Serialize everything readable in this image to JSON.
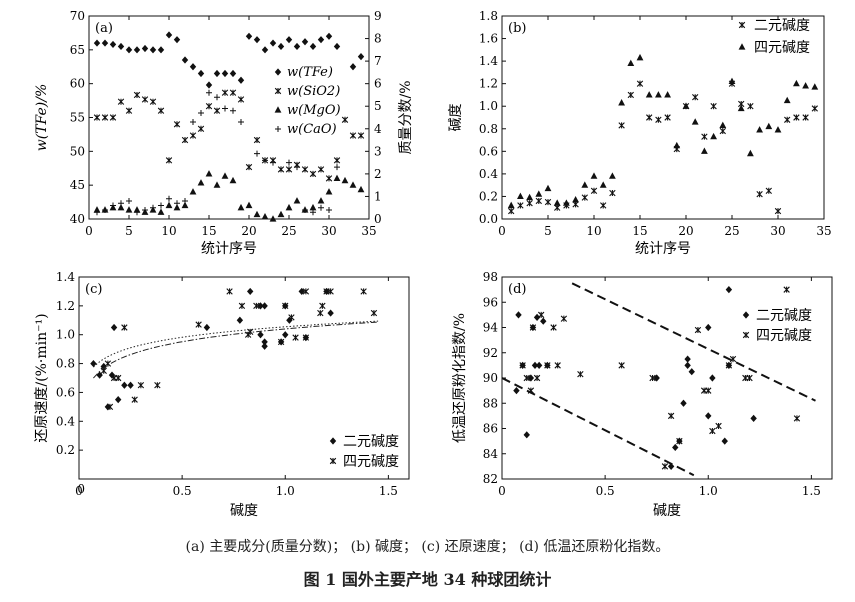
{
  "figure": {
    "subcaption": "(a) 主要成分(质量分数)； (b) 碱度； (c) 还原速度； (d) 低温还原粉化指数。",
    "title": "图 1  国外主要产地 34 种球团统计"
  },
  "chart_data": [
    {
      "panel": "a",
      "type": "scatter",
      "panel_label": "(a)",
      "xlabel": "统计序号",
      "ylabel_left": "w(TFe)/%",
      "ylabel_right": "质量分数/%",
      "xlim": [
        0,
        35
      ],
      "xticks": [
        0,
        5,
        10,
        15,
        20,
        25,
        30,
        35
      ],
      "ylim_left": [
        40,
        70
      ],
      "yticks_left": [
        40,
        45,
        50,
        55,
        60,
        65,
        70
      ],
      "ylim_right": [
        0,
        9
      ],
      "yticks_right": [
        0,
        1,
        2,
        3,
        4,
        5,
        6,
        7,
        8,
        9
      ],
      "legend_position": "right-middle",
      "series": [
        {
          "name": "w(TFe)",
          "marker": "diamond",
          "axis": "left",
          "x": [
            1,
            2,
            3,
            4,
            5,
            6,
            7,
            8,
            9,
            10,
            11,
            12,
            13,
            14,
            15,
            16,
            17,
            18,
            19,
            20,
            21,
            22,
            23,
            24,
            25,
            26,
            27,
            28,
            29,
            30,
            31,
            32,
            33,
            34
          ],
          "y": [
            66,
            66,
            65.8,
            65.5,
            65,
            65,
            65.2,
            65,
            65,
            67.2,
            66.5,
            63.5,
            62.5,
            61.5,
            59.8,
            61.5,
            61.5,
            61.5,
            60.5,
            67,
            66.5,
            65,
            66,
            65.5,
            66.5,
            65.5,
            66.2,
            65.5,
            66.5,
            67,
            65.5,
            null,
            62.5,
            64
          ]
        },
        {
          "name": "w(SiO2)",
          "marker": "x",
          "axis": "right",
          "x": [
            1,
            2,
            3,
            4,
            5,
            6,
            7,
            8,
            9,
            10,
            11,
            12,
            13,
            14,
            15,
            16,
            17,
            18,
            19,
            20,
            21,
            22,
            23,
            24,
            25,
            26,
            27,
            28,
            29,
            30,
            31,
            32,
            33,
            34
          ],
          "y": [
            4.5,
            4.5,
            4.5,
            5.2,
            4.8,
            5.5,
            5.3,
            5.2,
            4.8,
            2.6,
            4.2,
            3.5,
            3.7,
            4.0,
            5.0,
            4.8,
            5.6,
            5.6,
            5.3,
            2.3,
            3.5,
            2.6,
            2.6,
            2.2,
            2.2,
            2.4,
            2.2,
            2.0,
            2.2,
            1.8,
            2.6,
            4.4,
            3.7,
            3.7
          ]
        },
        {
          "name": "w(MgO)",
          "marker": "triangle",
          "axis": "right",
          "x": [
            1,
            2,
            3,
            4,
            5,
            6,
            7,
            8,
            9,
            10,
            11,
            12,
            13,
            14,
            15,
            16,
            17,
            18,
            19,
            20,
            21,
            22,
            23,
            24,
            25,
            26,
            27,
            28,
            29,
            30,
            31,
            32,
            33,
            34
          ],
          "y": [
            0.4,
            0.4,
            0.5,
            0.5,
            0.4,
            0.4,
            0.3,
            0.4,
            0.3,
            0.6,
            0.5,
            0.6,
            1.2,
            1.6,
            2.0,
            1.5,
            1.9,
            1.7,
            0.5,
            0.6,
            0.2,
            0.1,
            0.0,
            0.2,
            0.5,
            0.8,
            0.4,
            0.5,
            0.8,
            1.2,
            1.8,
            1.7,
            1.5,
            1.3
          ]
        },
        {
          "name": "w(CaO)",
          "marker": "plus",
          "axis": "right",
          "x": [
            1,
            2,
            3,
            4,
            5,
            6,
            7,
            8,
            9,
            10,
            11,
            12,
            13,
            14,
            15,
            16,
            17,
            18,
            19,
            20,
            21,
            22,
            23,
            24,
            25,
            26,
            27,
            28,
            29,
            30,
            31,
            32,
            33,
            34
          ],
          "y": [
            0.3,
            0.4,
            0.6,
            0.7,
            0.8,
            0.3,
            0.4,
            0.5,
            0.6,
            0.9,
            0.7,
            0.8,
            4.3,
            4.7,
            5.6,
            5.4,
            4.9,
            4.8,
            4.3,
            null,
            2.9,
            2.6,
            2.5,
            null,
            2.5,
            2.3,
            0.4,
            0.3,
            0.5,
            0.4,
            2.3,
            null,
            null,
            null
          ]
        }
      ]
    },
    {
      "panel": "b",
      "type": "scatter",
      "panel_label": "(b)",
      "xlabel": "统计序号",
      "ylabel": "碱度",
      "xlim": [
        0,
        35
      ],
      "xticks": [
        0,
        5,
        10,
        15,
        20,
        25,
        30,
        35
      ],
      "ylim": [
        0,
        1.8
      ],
      "yticks": [
        0,
        0.2,
        0.4,
        0.6,
        0.8,
        1.0,
        1.2,
        1.4,
        1.6,
        1.8
      ],
      "legend_position": "top-right",
      "series": [
        {
          "name": "二元碱度",
          "marker": "x",
          "x": [
            1,
            2,
            3,
            4,
            5,
            6,
            7,
            8,
            9,
            10,
            11,
            12,
            13,
            14,
            15,
            16,
            17,
            18,
            19,
            20,
            21,
            22,
            23,
            24,
            25,
            26,
            27,
            28,
            29,
            30,
            31,
            32,
            33,
            34
          ],
          "y": [
            0.07,
            0.12,
            0.14,
            0.16,
            0.15,
            0.1,
            0.12,
            0.13,
            0.19,
            0.25,
            0.12,
            0.23,
            0.83,
            1.1,
            1.2,
            0.9,
            0.88,
            0.9,
            0.62,
            1.0,
            1.08,
            0.73,
            1.0,
            0.78,
            1.2,
            1.02,
            1.0,
            0.22,
            0.25,
            0.07,
            0.88,
            0.9,
            0.9,
            0.98
          ]
        },
        {
          "name": "四元碱度",
          "marker": "triangle",
          "x": [
            1,
            2,
            3,
            4,
            5,
            6,
            7,
            8,
            9,
            10,
            11,
            12,
            13,
            14,
            15,
            16,
            17,
            18,
            19,
            20,
            21,
            22,
            23,
            24,
            25,
            26,
            27,
            28,
            29,
            30,
            31,
            32,
            33,
            34
          ],
          "y": [
            0.12,
            0.2,
            0.19,
            0.22,
            0.27,
            0.14,
            0.14,
            0.17,
            0.3,
            0.38,
            0.3,
            0.38,
            1.03,
            1.38,
            1.43,
            1.1,
            1.1,
            1.1,
            0.65,
            1.0,
            0.86,
            0.6,
            0.73,
            0.83,
            1.22,
            0.98,
            0.58,
            0.79,
            0.82,
            0.79,
            1.05,
            1.2,
            1.18,
            1.17
          ]
        }
      ]
    },
    {
      "panel": "c",
      "type": "scatter",
      "panel_label": "(c)",
      "xlabel": "碱度",
      "ylabel": "还原速度/(%·min⁻¹)",
      "xlim": [
        0,
        1.6
      ],
      "xticks": [
        0,
        0.5,
        1.0,
        1.5
      ],
      "xtick_labels": [
        "0",
        "0.5",
        "1.0",
        "1.5"
      ],
      "ylim": [
        0,
        1.4
      ],
      "yticks": [
        0.2,
        0.4,
        0.6,
        0.8,
        1.0,
        1.2,
        1.4
      ],
      "legend_position": "bottom-right",
      "series": [
        {
          "name": "二元碱度",
          "marker": "diamond",
          "x": [
            0.07,
            0.1,
            0.12,
            0.14,
            0.16,
            0.17,
            0.19,
            0.22,
            0.25,
            0.62,
            0.78,
            0.83,
            0.88,
            0.88,
            0.9,
            0.9,
            0.9,
            0.98,
            1.0,
            1.0,
            1.02,
            1.08,
            1.1,
            1.2,
            1.22
          ],
          "y": [
            0.8,
            0.72,
            0.78,
            0.5,
            0.72,
            1.05,
            0.55,
            0.65,
            0.65,
            1.05,
            1.1,
            1.3,
            1.2,
            1.0,
            1.2,
            0.95,
            0.92,
            0.95,
            1.2,
            1.0,
            1.1,
            1.3,
            0.98,
            1.3,
            1.15
          ]
        },
        {
          "name": "四元碱度",
          "marker": "x",
          "x": [
            0.12,
            0.14,
            0.15,
            0.17,
            0.19,
            0.22,
            0.27,
            0.3,
            0.38,
            0.58,
            0.73,
            0.79,
            0.82,
            0.83,
            0.86,
            0.98,
            1.0,
            1.03,
            1.05,
            1.1,
            1.1,
            1.17,
            1.18,
            1.2,
            1.22,
            1.38,
            1.43
          ],
          "y": [
            0.75,
            0.8,
            0.5,
            0.7,
            0.7,
            1.05,
            0.55,
            0.65,
            0.65,
            1.07,
            1.3,
            1.2,
            1.0,
            1.02,
            1.2,
            0.95,
            1.2,
            1.12,
            0.98,
            0.98,
            1.3,
            1.15,
            1.2,
            1.3,
            1.3,
            1.3,
            1.15
          ]
        },
        {
          "name": "fit-binary",
          "style": "dotted-dashed",
          "curve": "log",
          "a": 1.055,
          "b": 0.105
        },
        {
          "name": "fit-quaternary",
          "style": "dash-dot",
          "curve": "log",
          "a": 1.04,
          "b": 0.128
        }
      ]
    },
    {
      "panel": "d",
      "type": "scatter",
      "panel_label": "(d)",
      "xlabel": "碱度",
      "ylabel": "低温还原粉化指数/%",
      "xlim": [
        0,
        1.6
      ],
      "xticks": [
        0,
        0.5,
        1.0,
        1.5
      ],
      "xtick_labels": [
        "0",
        "0.5",
        "1.0",
        "1.5"
      ],
      "ylim": [
        82,
        98
      ],
      "yticks": [
        82,
        84,
        86,
        88,
        90,
        92,
        94,
        96,
        98
      ],
      "legend_position": "top-right",
      "series": [
        {
          "name": "二元碱度",
          "marker": "diamond",
          "x": [
            0.07,
            0.08,
            0.1,
            0.12,
            0.14,
            0.15,
            0.16,
            0.17,
            0.18,
            0.2,
            0.22,
            0.75,
            0.82,
            0.84,
            0.86,
            0.88,
            0.9,
            0.9,
            0.92,
            1.0,
            1.0,
            1.02,
            1.08,
            1.1,
            1.1,
            1.22
          ],
          "y": [
            89,
            95,
            91,
            85.5,
            90,
            94,
            91,
            94.8,
            91,
            94.5,
            91,
            90,
            83,
            84.5,
            85,
            88,
            91.5,
            91,
            90.5,
            87,
            94,
            90,
            85,
            97,
            91,
            86.8
          ]
        },
        {
          "name": "四元碱度",
          "marker": "x",
          "x": [
            0.1,
            0.12,
            0.14,
            0.15,
            0.17,
            0.19,
            0.22,
            0.25,
            0.27,
            0.3,
            0.38,
            0.58,
            0.73,
            0.79,
            0.82,
            0.86,
            0.95,
            0.98,
            1.0,
            1.02,
            1.05,
            1.1,
            1.12,
            1.18,
            1.2,
            1.38,
            1.43
          ],
          "y": [
            91,
            90,
            89,
            94,
            90,
            95,
            91,
            94,
            91,
            94.7,
            90.3,
            91,
            90,
            83,
            87,
            85,
            93.8,
            89,
            89,
            85.8,
            86.2,
            91,
            91.5,
            90,
            90,
            97,
            86.8
          ]
        },
        {
          "name": "upper-bound",
          "style": "dashed",
          "x": [
            0.34,
            1.52
          ],
          "y": [
            97.5,
            88.2
          ]
        },
        {
          "name": "lower-bound",
          "style": "dashed",
          "x": [
            0.0,
            0.93
          ],
          "y": [
            90.0,
            82.3
          ]
        }
      ]
    }
  ]
}
